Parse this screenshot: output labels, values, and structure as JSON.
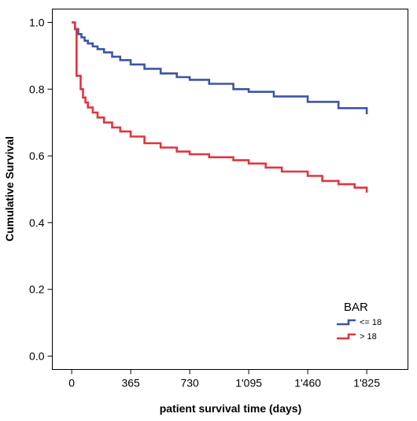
{
  "chart_data": {
    "type": "line",
    "step": true,
    "title": "",
    "xlabel": "patient survival time (days)",
    "ylabel": "Cumulative Survival",
    "xlim": [
      -120,
      2080
    ],
    "ylim": [
      -0.04,
      1.04
    ],
    "x_ticks": [
      0,
      365,
      730,
      1095,
      1460,
      1825
    ],
    "x_tick_labels": [
      "0",
      "365",
      "730",
      "1'095",
      "1'460",
      "1'825"
    ],
    "y_ticks": [
      0.0,
      0.2,
      0.4,
      0.6,
      0.8,
      1.0
    ],
    "y_tick_labels": [
      "0.0",
      "0.2",
      "0.4",
      "0.6",
      "0.8",
      "1.0"
    ],
    "grid": false,
    "legend": {
      "title": "BAR",
      "position": "bottom-right"
    },
    "series": [
      {
        "name": "<= 18",
        "color": "#3b56a6",
        "x": [
          0,
          20,
          40,
          60,
          80,
          100,
          130,
          160,
          200,
          250,
          300,
          365,
          450,
          550,
          650,
          730,
          850,
          1000,
          1095,
          1250,
          1460,
          1650,
          1825
        ],
        "y": [
          1.0,
          0.98,
          0.965,
          0.955,
          0.945,
          0.937,
          0.928,
          0.92,
          0.91,
          0.897,
          0.887,
          0.874,
          0.861,
          0.847,
          0.836,
          0.828,
          0.816,
          0.8,
          0.792,
          0.778,
          0.762,
          0.743,
          0.725
        ]
      },
      {
        "name": "> 18",
        "color": "#e0353f",
        "x": [
          0,
          20,
          30,
          40,
          55,
          70,
          85,
          100,
          130,
          160,
          200,
          250,
          300,
          365,
          450,
          550,
          650,
          730,
          850,
          1000,
          1095,
          1200,
          1300,
          1460,
          1550,
          1650,
          1750,
          1825
        ],
        "y": [
          1.0,
          0.98,
          0.84,
          0.84,
          0.8,
          0.775,
          0.76,
          0.745,
          0.73,
          0.715,
          0.7,
          0.685,
          0.673,
          0.658,
          0.638,
          0.625,
          0.613,
          0.605,
          0.596,
          0.587,
          0.577,
          0.565,
          0.553,
          0.54,
          0.525,
          0.515,
          0.505,
          0.49
        ]
      }
    ]
  }
}
